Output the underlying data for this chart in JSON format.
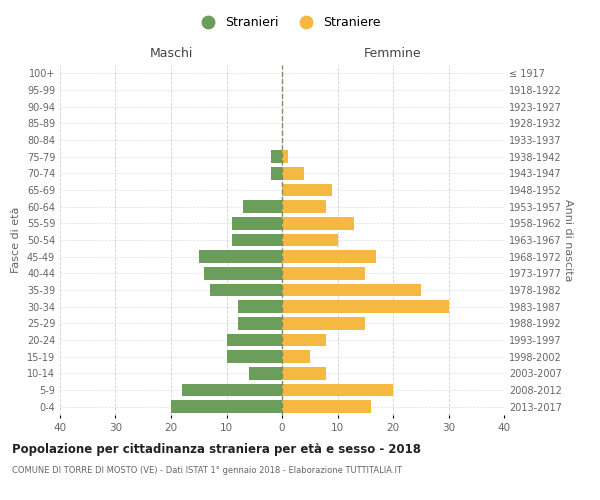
{
  "age_groups": [
    "0-4",
    "5-9",
    "10-14",
    "15-19",
    "20-24",
    "25-29",
    "30-34",
    "35-39",
    "40-44",
    "45-49",
    "50-54",
    "55-59",
    "60-64",
    "65-69",
    "70-74",
    "75-79",
    "80-84",
    "85-89",
    "90-94",
    "95-99",
    "100+"
  ],
  "birth_years": [
    "2013-2017",
    "2008-2012",
    "2003-2007",
    "1998-2002",
    "1993-1997",
    "1988-1992",
    "1983-1987",
    "1978-1982",
    "1973-1977",
    "1968-1972",
    "1963-1967",
    "1958-1962",
    "1953-1957",
    "1948-1952",
    "1943-1947",
    "1938-1942",
    "1933-1937",
    "1928-1932",
    "1923-1927",
    "1918-1922",
    "≤ 1917"
  ],
  "males": [
    20,
    18,
    6,
    10,
    10,
    8,
    8,
    13,
    14,
    15,
    9,
    9,
    7,
    0,
    2,
    2,
    0,
    0,
    0,
    0,
    0
  ],
  "females": [
    16,
    20,
    8,
    5,
    8,
    15,
    30,
    25,
    15,
    17,
    10,
    13,
    8,
    9,
    4,
    1,
    0,
    0,
    0,
    0,
    0
  ],
  "male_color": "#6a9e5a",
  "female_color": "#f5b942",
  "background_color": "#ffffff",
  "grid_color": "#cccccc",
  "title": "Popolazione per cittadinanza straniera per età e sesso - 2018",
  "subtitle": "COMUNE DI TORRE DI MOSTO (VE) - Dati ISTAT 1° gennaio 2018 - Elaborazione TUTTITALIA.IT",
  "xlabel_left": "Maschi",
  "xlabel_right": "Femmine",
  "ylabel_left": "Fasce di età",
  "ylabel_right": "Anni di nascita",
  "legend_stranieri": "Stranieri",
  "legend_straniere": "Straniere",
  "xlim": 40
}
